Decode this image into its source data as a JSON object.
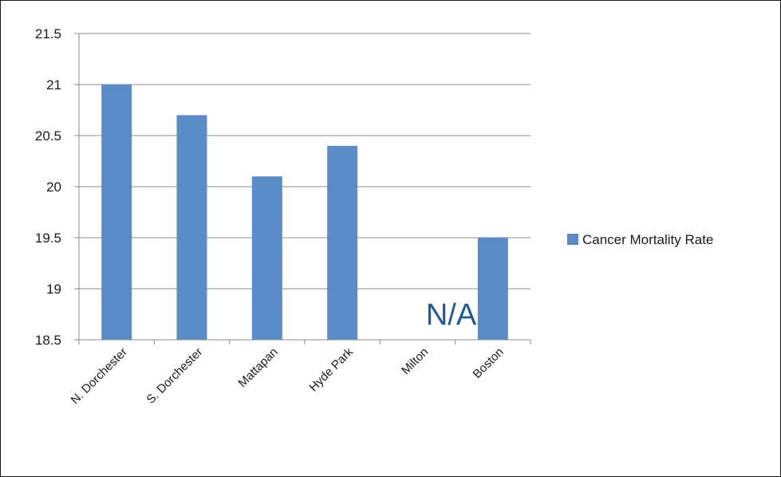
{
  "chart_data": {
    "type": "bar",
    "categories": [
      "N. Dorchester",
      "S. Dorchester",
      "Mattapan",
      "Hyde Park",
      "Milton",
      "Boston"
    ],
    "series": [
      {
        "name": "Cancer Mortality Rate",
        "values": [
          21.0,
          20.7,
          20.1,
          20.4,
          null,
          19.5
        ]
      }
    ],
    "yticks": [
      "18.5",
      "19",
      "19.5",
      "20",
      "20.5",
      "21",
      "21.5"
    ],
    "ylim": [
      18.5,
      21.5
    ],
    "grid": true,
    "legend_position": "right",
    "annotations": [
      {
        "text": "N/A",
        "category": "Milton",
        "color": "#1f5a96"
      }
    ],
    "colors": {
      "bar": "#5b8bc5",
      "grid": "#8c8c8c",
      "axis": "#8c8c8c"
    }
  }
}
